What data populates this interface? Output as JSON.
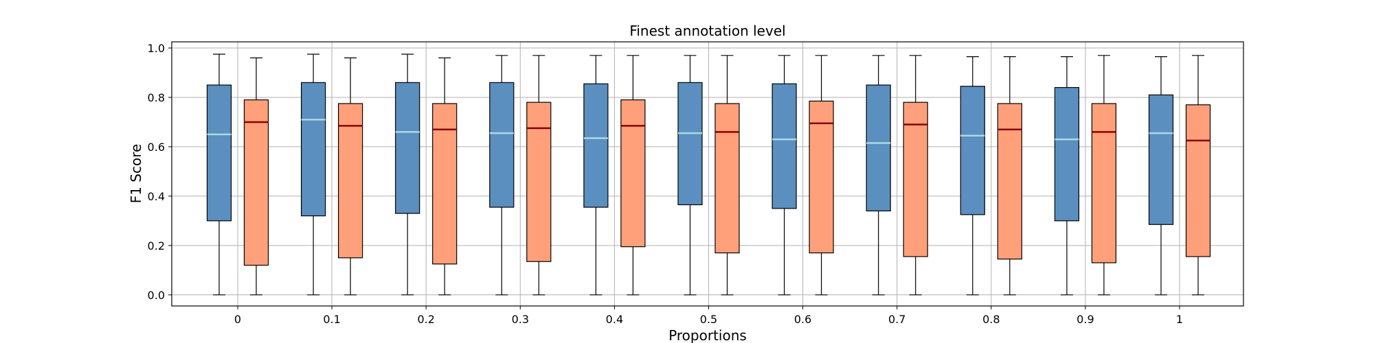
{
  "chart_data": {
    "type": "box",
    "title": "Finest annotation level",
    "xlabel": "Proportions",
    "ylabel": "F1 Score",
    "ylim": [
      -0.045,
      1.025
    ],
    "yticks": [
      "0.0",
      "0.2",
      "0.4",
      "0.6",
      "0.8",
      "1.0"
    ],
    "grid": true,
    "categories": [
      "0",
      "0.1",
      "0.2",
      "0.3",
      "0.4",
      "0.5",
      "0.6",
      "0.7",
      "0.8",
      "0.9",
      "1"
    ],
    "series": [
      {
        "fill": "#5b8fbf",
        "median_color": "#add8e6",
        "boxes": [
          {
            "whislo": 0.0,
            "q1": 0.3,
            "med": 0.65,
            "q3": 0.85,
            "whishi": 0.975
          },
          {
            "whislo": 0.0,
            "q1": 0.32,
            "med": 0.71,
            "q3": 0.86,
            "whishi": 0.975
          },
          {
            "whislo": 0.0,
            "q1": 0.33,
            "med": 0.66,
            "q3": 0.86,
            "whishi": 0.975
          },
          {
            "whislo": 0.0,
            "q1": 0.355,
            "med": 0.655,
            "q3": 0.86,
            "whishi": 0.97
          },
          {
            "whislo": 0.0,
            "q1": 0.355,
            "med": 0.635,
            "q3": 0.855,
            "whishi": 0.97
          },
          {
            "whislo": 0.0,
            "q1": 0.365,
            "med": 0.655,
            "q3": 0.86,
            "whishi": 0.97
          },
          {
            "whislo": 0.0,
            "q1": 0.35,
            "med": 0.63,
            "q3": 0.855,
            "whishi": 0.97
          },
          {
            "whislo": 0.0,
            "q1": 0.34,
            "med": 0.615,
            "q3": 0.85,
            "whishi": 0.97
          },
          {
            "whislo": 0.0,
            "q1": 0.325,
            "med": 0.645,
            "q3": 0.845,
            "whishi": 0.965
          },
          {
            "whislo": 0.0,
            "q1": 0.3,
            "med": 0.63,
            "q3": 0.84,
            "whishi": 0.965
          },
          {
            "whislo": 0.0,
            "q1": 0.285,
            "med": 0.655,
            "q3": 0.81,
            "whishi": 0.965
          }
        ]
      },
      {
        "fill": "#ffa07a",
        "median_color": "#8b0000",
        "boxes": [
          {
            "whislo": 0.0,
            "q1": 0.12,
            "med": 0.7,
            "q3": 0.79,
            "whishi": 0.96
          },
          {
            "whislo": 0.0,
            "q1": 0.15,
            "med": 0.685,
            "q3": 0.775,
            "whishi": 0.96
          },
          {
            "whislo": 0.0,
            "q1": 0.125,
            "med": 0.67,
            "q3": 0.775,
            "whishi": 0.96
          },
          {
            "whislo": 0.0,
            "q1": 0.135,
            "med": 0.675,
            "q3": 0.78,
            "whishi": 0.97
          },
          {
            "whislo": 0.0,
            "q1": 0.195,
            "med": 0.685,
            "q3": 0.79,
            "whishi": 0.97
          },
          {
            "whislo": 0.0,
            "q1": 0.17,
            "med": 0.66,
            "q3": 0.775,
            "whishi": 0.97
          },
          {
            "whislo": 0.0,
            "q1": 0.17,
            "med": 0.695,
            "q3": 0.785,
            "whishi": 0.97
          },
          {
            "whislo": 0.0,
            "q1": 0.155,
            "med": 0.69,
            "q3": 0.78,
            "whishi": 0.97
          },
          {
            "whislo": 0.0,
            "q1": 0.145,
            "med": 0.67,
            "q3": 0.775,
            "whishi": 0.965
          },
          {
            "whislo": 0.0,
            "q1": 0.13,
            "med": 0.66,
            "q3": 0.775,
            "whishi": 0.97
          },
          {
            "whislo": 0.0,
            "q1": 0.155,
            "med": 0.625,
            "q3": 0.77,
            "whishi": 0.97
          }
        ]
      }
    ]
  }
}
